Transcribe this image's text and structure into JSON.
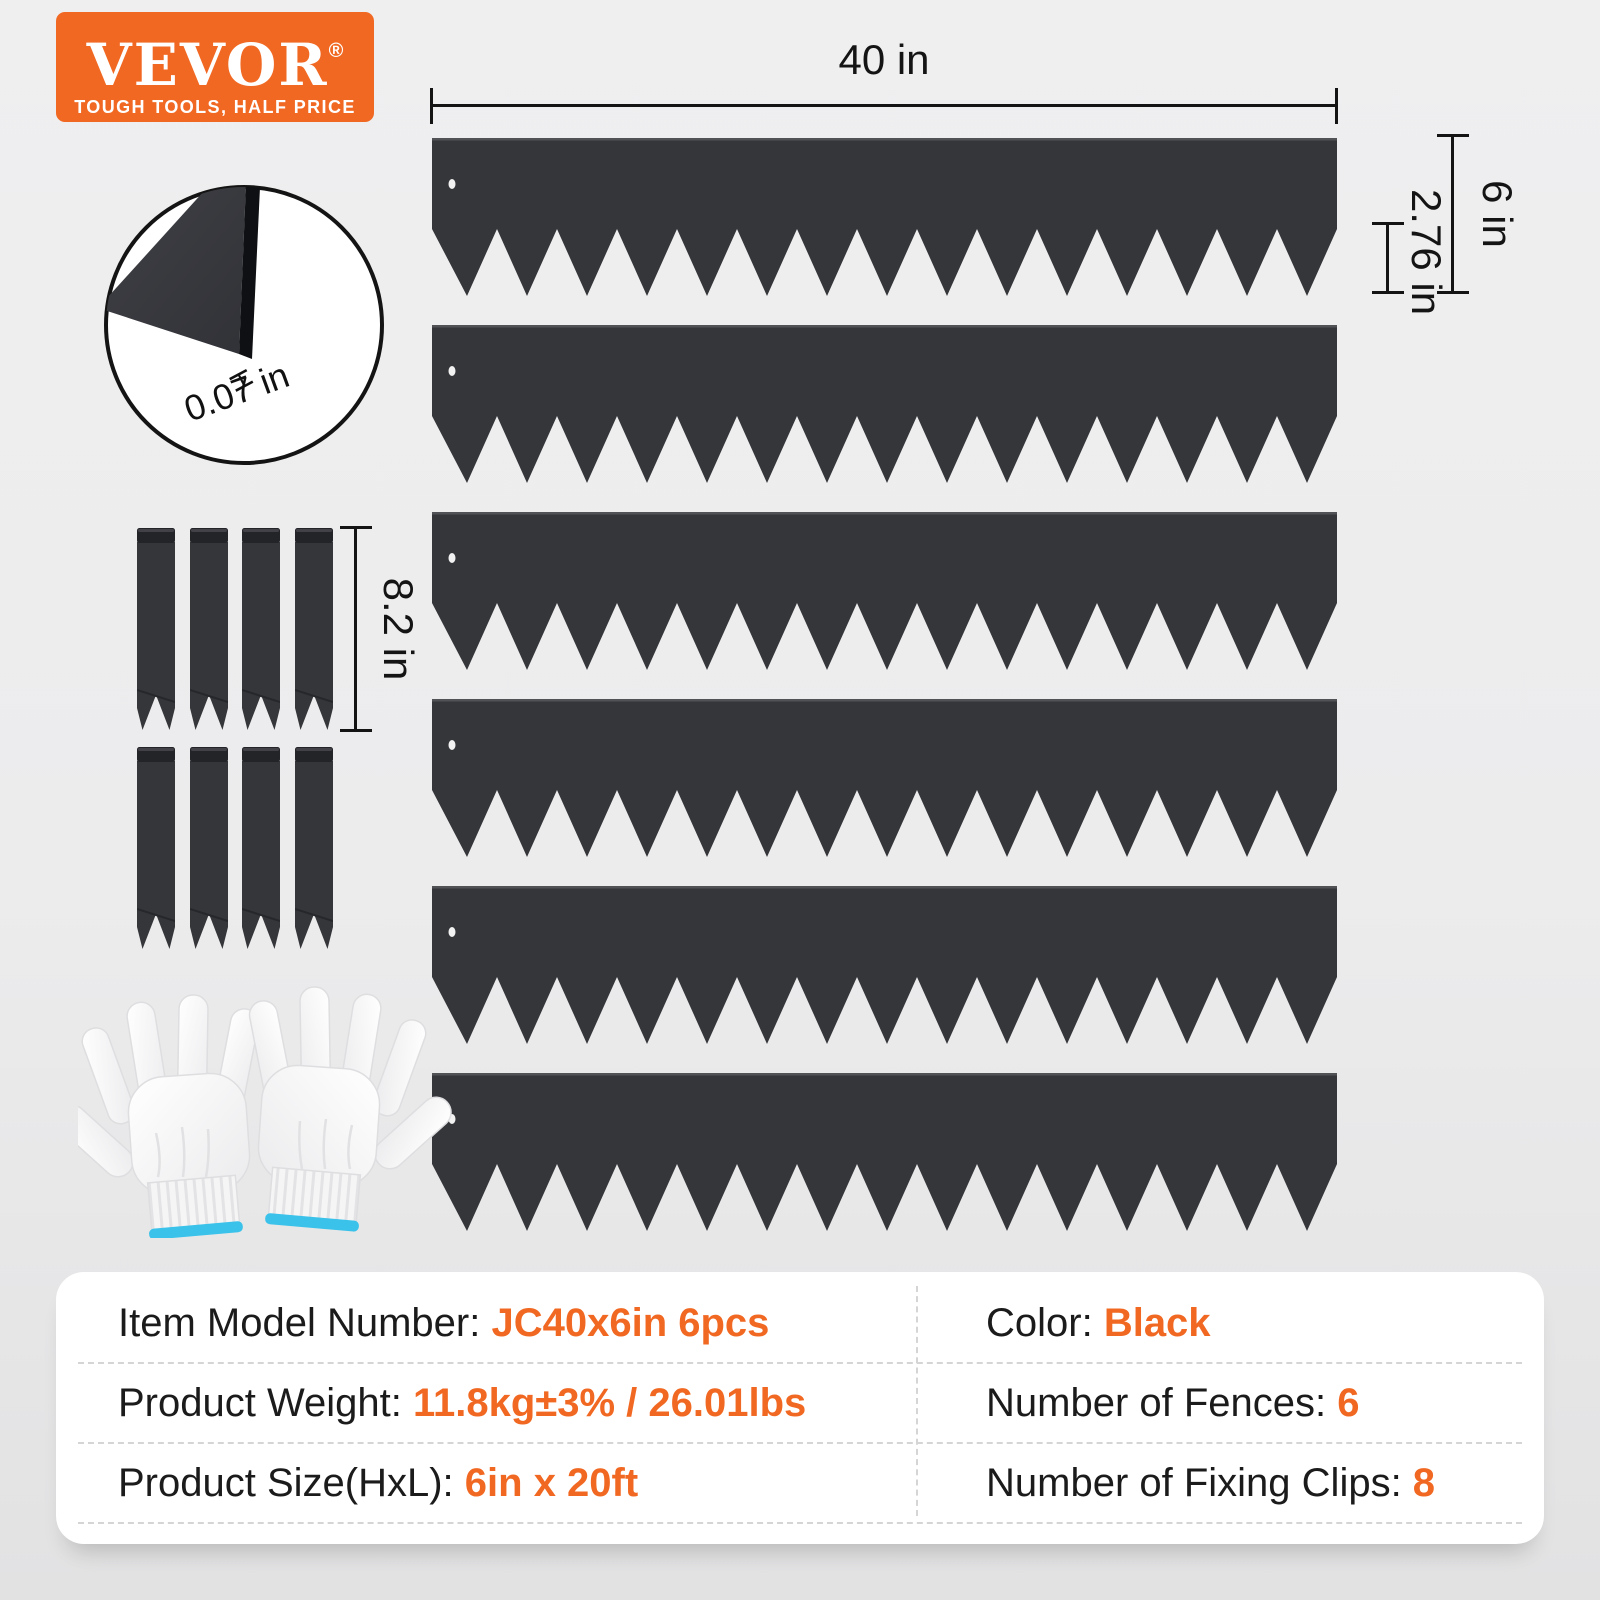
{
  "colors": {
    "accent": "#F16822",
    "steel": "#35363A",
    "background": "#ECECED",
    "glove_cuff": "#3AC2EA"
  },
  "brand": {
    "name": "VEVOR",
    "registered": "®",
    "tagline": "TOUGH TOOLS, HALF PRICE"
  },
  "annotations": {
    "length": "40 in",
    "height": "6 in",
    "tooth_height": "2.76 in",
    "thickness": "0.07 in",
    "thickness_tick": "H",
    "clip_length": "8.2 in"
  },
  "fence": {
    "count": 6,
    "teeth_per_strip": 15
  },
  "clips": {
    "rows": 2,
    "per_row": 4
  },
  "specs": {
    "left": [
      {
        "label": "Item Model Number: ",
        "value": "JC40x6in 6pcs"
      },
      {
        "label": "Product Weight: ",
        "value": "11.8kg±3% / 26.01lbs"
      },
      {
        "label": "Product Size(HxL): ",
        "value": "6in x 20ft"
      }
    ],
    "right": [
      {
        "label": "Color: ",
        "value": "Black"
      },
      {
        "label": "Number of Fences: ",
        "value": "6"
      },
      {
        "label": "Number of Fixing Clips: ",
        "value": "8"
      }
    ]
  }
}
